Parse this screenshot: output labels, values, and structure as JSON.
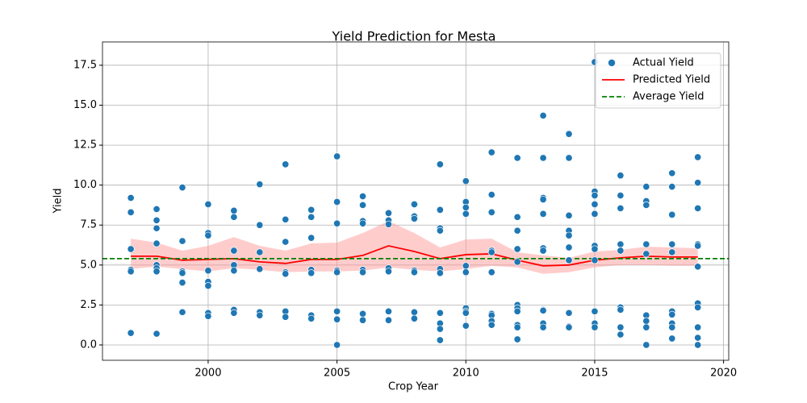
{
  "chart_data": {
    "type": "scatter",
    "title": "Yield Prediction for Mesta",
    "x_label": "Crop Year",
    "y_label": "Yield",
    "xlim": [
      1995.9,
      2020.2
    ],
    "ylim": [
      -0.96,
      18.96
    ],
    "xticks": [
      2000,
      2005,
      2010,
      2015,
      2020
    ],
    "yticks": [
      {
        "value": 0,
        "label": "0.0"
      },
      2.5,
      {
        "value": 5,
        "label": "5.0"
      },
      7.5,
      {
        "value": 10,
        "label": "10.0"
      },
      12.5,
      {
        "value": 15,
        "label": "15.0"
      },
      17.5
    ],
    "grid": true,
    "legend": "upper right",
    "series": [
      {
        "name": "Actual Yield",
        "type": "scatter",
        "color": "#1f77b4",
        "x": [
          1997,
          1997,
          1997,
          1997,
          1997,
          1997,
          1998,
          1998,
          1998,
          1998,
          1998,
          1998,
          1998,
          1998,
          1999,
          1999,
          1999,
          1999,
          1999,
          1999,
          2000,
          2000,
          2000,
          2000,
          2000,
          2000,
          2000,
          2000,
          2001,
          2001,
          2001,
          2001,
          2001,
          2001,
          2001,
          2002,
          2002,
          2002,
          2002,
          2002,
          2002,
          2003,
          2003,
          2003,
          2003,
          2003,
          2003,
          2003,
          2004,
          2004,
          2004,
          2004,
          2004,
          2004,
          2004,
          2005,
          2005,
          2005,
          2005,
          2005,
          2005,
          2005,
          2005,
          2006,
          2006,
          2006,
          2006,
          2006,
          2006,
          2006,
          2006,
          2007,
          2007,
          2007,
          2007,
          2007,
          2007,
          2007,
          2008,
          2008,
          2008,
          2008,
          2008,
          2008,
          2008,
          2009,
          2009,
          2009,
          2009,
          2009,
          2009,
          2009,
          2009,
          2009,
          2009,
          2010,
          2010,
          2010,
          2010,
          2010,
          2010,
          2010,
          2010,
          2010,
          2010,
          2011,
          2011,
          2011,
          2011,
          2011,
          2011,
          2011,
          2011,
          2011,
          2011,
          2012,
          2012,
          2012,
          2012,
          2012,
          2012,
          2012,
          2012,
          2012,
          2012,
          2012,
          2013,
          2013,
          2013,
          2013,
          2013,
          2013,
          2013,
          2013,
          2013,
          2013,
          2013,
          2014,
          2014,
          2014,
          2014,
          2014,
          2014,
          2014,
          2014,
          2014,
          2014,
          2015,
          2015,
          2015,
          2015,
          2015,
          2015,
          2015,
          2015,
          2015,
          2015,
          2015,
          2016,
          2016,
          2016,
          2016,
          2016,
          2016,
          2016,
          2016,
          2016,
          2017,
          2017,
          2017,
          2017,
          2017,
          2017,
          2017,
          2017,
          2017,
          2018,
          2018,
          2018,
          2018,
          2018,
          2018,
          2018,
          2018,
          2018,
          2018,
          2019,
          2019,
          2019,
          2019,
          2019,
          2019,
          2019,
          2019,
          2019,
          2019,
          2019
        ],
        "values": [
          9.2,
          8.3,
          6.0,
          4.7,
          4.6,
          0.75,
          8.5,
          7.8,
          7.3,
          6.35,
          5.0,
          4.8,
          4.6,
          0.7,
          9.85,
          6.5,
          4.6,
          4.5,
          3.9,
          2.05,
          8.8,
          7.0,
          6.85,
          4.65,
          3.95,
          3.7,
          2.0,
          1.8,
          8.4,
          8.0,
          5.9,
          5.0,
          4.65,
          2.2,
          2.0,
          10.05,
          7.5,
          5.8,
          4.75,
          2.05,
          1.85,
          11.3,
          7.85,
          6.45,
          4.55,
          4.45,
          2.1,
          1.75,
          8.45,
          8.0,
          6.7,
          4.7,
          4.5,
          1.85,
          1.65,
          11.8,
          8.95,
          7.6,
          4.65,
          4.55,
          2.1,
          1.6,
          0.0,
          9.3,
          8.75,
          7.75,
          7.6,
          4.7,
          4.55,
          1.95,
          1.55,
          8.25,
          7.8,
          7.55,
          4.8,
          4.6,
          2.1,
          1.55,
          8.8,
          8.05,
          7.9,
          4.65,
          4.55,
          2.05,
          1.65,
          11.3,
          8.45,
          7.3,
          7.15,
          4.75,
          4.5,
          2.0,
          1.35,
          1.0,
          0.3,
          10.25,
          8.95,
          8.6,
          8.2,
          4.95,
          4.55,
          2.3,
          2.1,
          2.0,
          1.2,
          12.05,
          9.4,
          8.3,
          5.9,
          5.8,
          4.55,
          1.95,
          1.85,
          1.5,
          1.25,
          11.7,
          8.0,
          7.15,
          6.0,
          5.2,
          2.5,
          2.3,
          2.1,
          1.25,
          1.1,
          0.35,
          14.35,
          11.7,
          9.2,
          9.1,
          8.2,
          6.05,
          5.9,
          2.2,
          2.15,
          1.35,
          1.1,
          13.2,
          11.7,
          8.1,
          7.15,
          6.85,
          6.1,
          5.3,
          2.0,
          1.15,
          1.1,
          17.7,
          9.6,
          9.35,
          8.8,
          8.2,
          6.2,
          6.0,
          5.3,
          2.1,
          1.35,
          1.1,
          10.6,
          9.35,
          8.55,
          6.3,
          5.9,
          2.35,
          2.2,
          1.1,
          0.65,
          9.9,
          9.0,
          8.75,
          6.3,
          5.7,
          1.85,
          1.5,
          1.1,
          0.0,
          10.75,
          9.9,
          8.15,
          6.3,
          5.8,
          2.1,
          1.9,
          1.35,
          1.1,
          0.4,
          11.75,
          10.15,
          8.55,
          6.3,
          6.2,
          4.9,
          2.6,
          2.35,
          1.1,
          0.45,
          0.0
        ]
      },
      {
        "name": "Predicted Yield",
        "type": "line",
        "color": "#ff0000",
        "band_color": "#ff9999",
        "x": [
          1997,
          1998,
          1999,
          2000,
          2001,
          2002,
          2003,
          2004,
          2005,
          2006,
          2007,
          2008,
          2009,
          2010,
          2011,
          2012,
          2013,
          2014,
          2015,
          2016,
          2017,
          2018,
          2019
        ],
        "values": [
          5.55,
          5.55,
          5.3,
          5.35,
          5.4,
          5.2,
          5.1,
          5.35,
          5.35,
          5.6,
          6.2,
          5.85,
          5.4,
          5.65,
          5.7,
          5.3,
          4.95,
          5.0,
          5.3,
          5.45,
          5.55,
          5.5,
          5.5
        ],
        "upper": [
          6.65,
          6.4,
          5.9,
          6.2,
          6.75,
          6.2,
          5.9,
          6.35,
          6.4,
          7.0,
          7.75,
          7.0,
          6.1,
          6.6,
          6.65,
          5.8,
          5.6,
          5.45,
          5.85,
          5.95,
          6.15,
          6.1,
          6.05
        ],
        "lower": [
          4.75,
          4.9,
          4.75,
          4.6,
          4.8,
          4.7,
          4.55,
          4.6,
          4.6,
          4.65,
          4.85,
          4.7,
          4.6,
          4.75,
          4.95,
          4.85,
          4.45,
          4.55,
          4.85,
          5.0,
          5.0,
          4.95,
          4.95
        ]
      },
      {
        "name": "Average Yield",
        "type": "hline",
        "color": "#008000",
        "dashed": true,
        "value": 5.4
      }
    ]
  }
}
